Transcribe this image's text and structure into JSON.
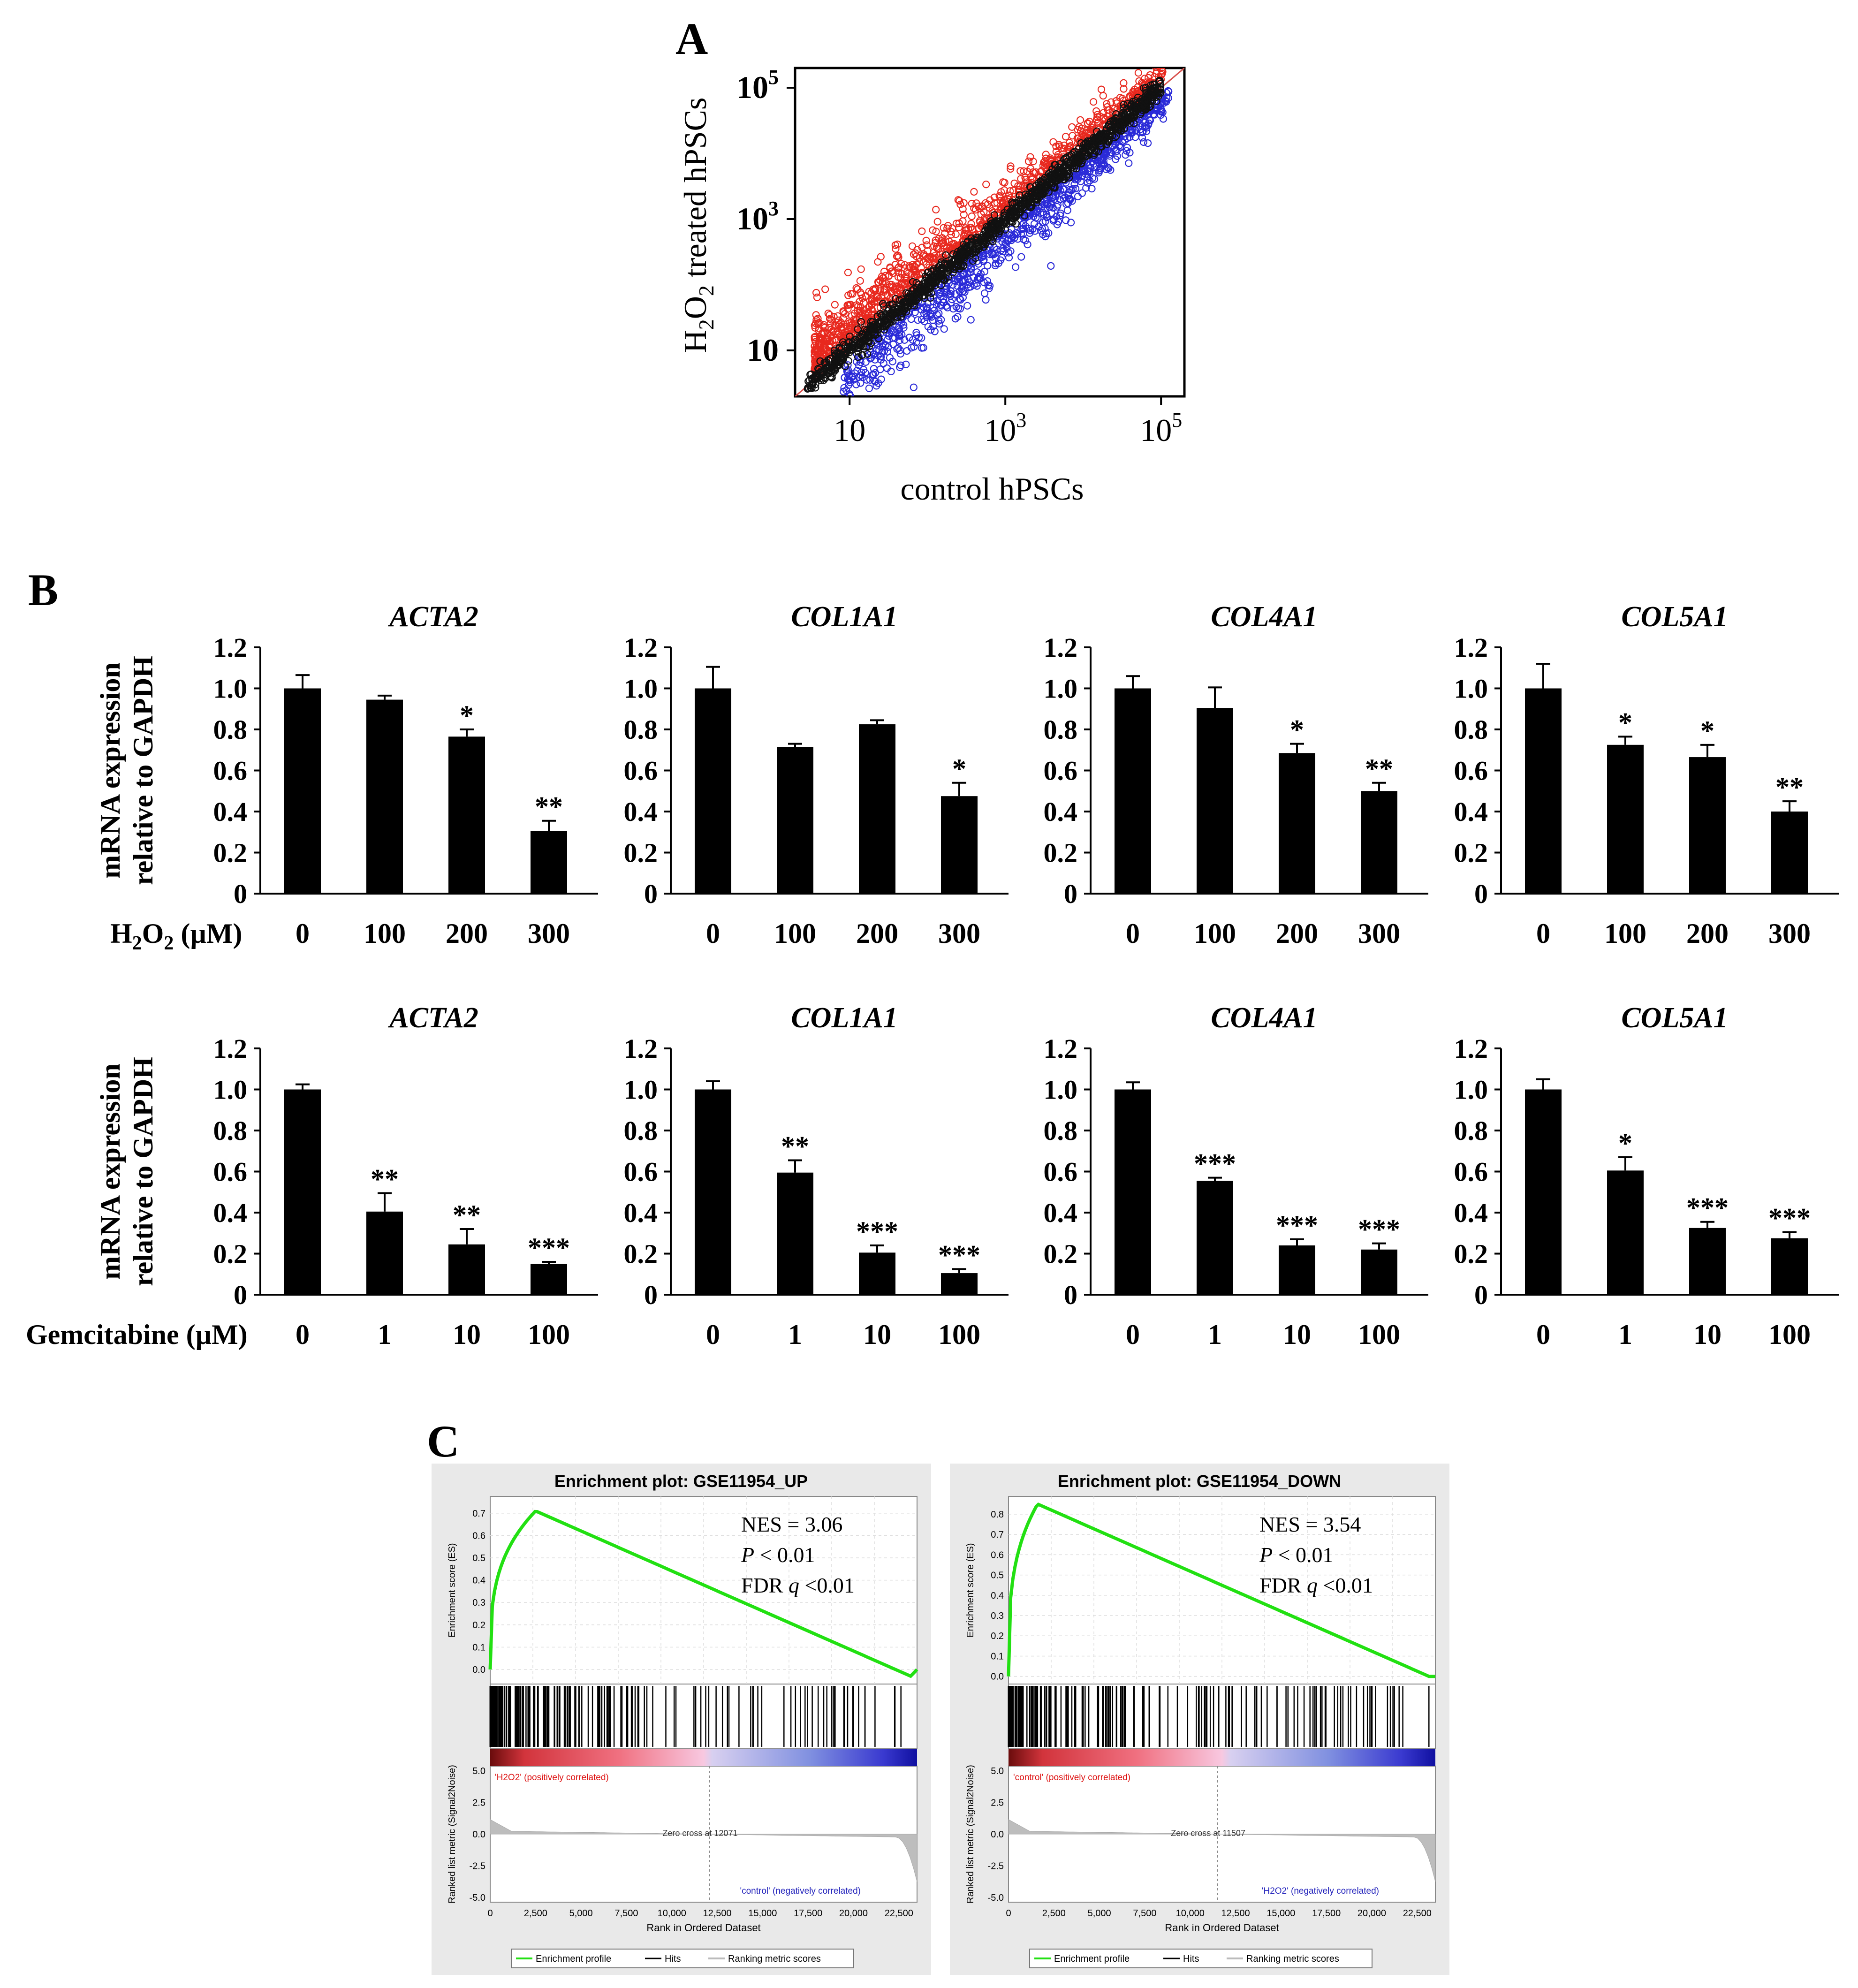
{
  "panels": {
    "A": "A",
    "B": "B",
    "C": "C"
  },
  "panelA": {
    "ylabel_prefix": "H",
    "ylabel_sub1": "2",
    "ylabel_mid": "O",
    "ylabel_sub2": "2",
    "ylabel_suffix": " treated hPSCs",
    "xlabel": "control hPSCs",
    "ticks": [
      {
        "base": "10",
        "exp": "",
        "log": 1
      },
      {
        "base": "10",
        "exp": "3",
        "log": 3
      },
      {
        "base": "10",
        "exp": "5",
        "log": 5
      }
    ],
    "colors": {
      "up": "#e8281e",
      "down": "#2a2ad8",
      "neutral": "#111111",
      "diag": "#d9534f"
    }
  },
  "panelB": {
    "ylabel_line1": "mRNA expression",
    "ylabel_line2": "relative to GAPDH",
    "yticks": [
      "0",
      "0.2",
      "0.4",
      "0.6",
      "0.8",
      "1.0",
      "1.2"
    ],
    "rows": [
      {
        "treatment_prefix": "H",
        "treatment_sub": "2",
        "treatment_mid": "O",
        "treatment_sub2": "2",
        "treatment_suffix": " (µM)",
        "treatment_label": "H2O2 (µM)",
        "doses": [
          "0",
          "100",
          "200",
          "300"
        ],
        "charts": [
          {
            "gene": "ACTA2",
            "values": [
              1.0,
              0.945,
              0.765,
              0.305
            ],
            "errors": [
              0.065,
              0.02,
              0.035,
              0.05
            ],
            "stars": [
              "",
              "",
              "*",
              "**"
            ]
          },
          {
            "gene": "COL1A1",
            "values": [
              1.0,
              0.715,
              0.825,
              0.475
            ],
            "errors": [
              0.105,
              0.015,
              0.02,
              0.065
            ],
            "stars": [
              "",
              "",
              "",
              "*"
            ]
          },
          {
            "gene": "COL4A1",
            "values": [
              1.0,
              0.905,
              0.685,
              0.5
            ],
            "errors": [
              0.06,
              0.1,
              0.045,
              0.04
            ],
            "stars": [
              "",
              "",
              "*",
              "**"
            ]
          },
          {
            "gene": "COL5A1",
            "values": [
              1.0,
              0.725,
              0.665,
              0.4
            ],
            "errors": [
              0.12,
              0.04,
              0.06,
              0.05
            ],
            "stars": [
              "",
              "*",
              "*",
              "**"
            ]
          }
        ]
      },
      {
        "treatment_label": "Gemcitabine (µM)",
        "doses": [
          "0",
          "1",
          "10",
          "100"
        ],
        "charts": [
          {
            "gene": "ACTA2",
            "values": [
              1.0,
              0.405,
              0.245,
              0.15
            ],
            "errors": [
              0.025,
              0.09,
              0.075,
              0.01
            ],
            "stars": [
              "",
              "**",
              "**",
              "***"
            ]
          },
          {
            "gene": "COL1A1",
            "values": [
              1.0,
              0.595,
              0.205,
              0.105
            ],
            "errors": [
              0.04,
              0.06,
              0.035,
              0.02
            ],
            "stars": [
              "",
              "**",
              "***",
              "***"
            ]
          },
          {
            "gene": "COL4A1",
            "values": [
              1.0,
              0.555,
              0.24,
              0.22
            ],
            "errors": [
              0.035,
              0.015,
              0.03,
              0.03
            ],
            "stars": [
              "",
              "***",
              "***",
              "***"
            ]
          },
          {
            "gene": "COL5A1",
            "values": [
              1.0,
              0.605,
              0.325,
              0.275
            ],
            "errors": [
              0.05,
              0.065,
              0.03,
              0.03
            ],
            "stars": [
              "",
              "*",
              "***",
              "***"
            ]
          }
        ]
      }
    ]
  },
  "panelC": [
    {
      "title": "Enrichment plot: GSE11954_UP",
      "es_ylabel": "Enrichment score (ES)",
      "es_ticks": [
        "0.0",
        "0.1",
        "0.2",
        "0.3",
        "0.4",
        "0.5",
        "0.6",
        "0.7"
      ],
      "es_max": 0.75,
      "es_min": -0.04,
      "es_peak": 0.71,
      "es_peak_rank": 2500,
      "es_end": -0.03,
      "stats": {
        "nes": "NES = 3.06",
        "p_letter": "P",
        "p_rest": " < 0.01",
        "fdr_pre": "FDR ",
        "fdr_q": "q",
        "fdr_post": " <0.01"
      },
      "pos_label": "'H2O2' (positively correlated)",
      "neg_label": "'control' (negatively correlated)",
      "zero_cross": "Zero cross at 12071",
      "zero_cross_rank": 12071,
      "metric_ylabel": "Ranked list metric (Signal2Noise)",
      "metric_ticks": [
        "5.0",
        "2.5",
        "0.0",
        "-2.5",
        "-5.0"
      ],
      "x_ticks": [
        "0",
        "2,500",
        "5,000",
        "7,500",
        "10,000",
        "12,500",
        "15,000",
        "17,500",
        "20,000",
        "22,500"
      ],
      "xlabel": "Rank in Ordered Dataset",
      "legend": [
        "Enrichment profile",
        "Hits",
        "Ranking metric scores"
      ],
      "n": 23500
    },
    {
      "title": "Enrichment plot: GSE11954_DOWN",
      "es_ylabel": "Enrichment score (ES)",
      "es_ticks": [
        "0.0",
        "0.1",
        "0.2",
        "0.3",
        "0.4",
        "0.5",
        "0.6",
        "0.7",
        "0.8"
      ],
      "es_max": 0.86,
      "es_min": -0.01,
      "es_peak": 0.85,
      "es_peak_rank": 1600,
      "es_end": 0.0,
      "stats": {
        "nes": "NES = 3.54",
        "p_letter": "P",
        "p_rest": " < 0.01",
        "fdr_pre": "FDR ",
        "fdr_q": "q",
        "fdr_post": " <0.01"
      },
      "pos_label": "'control' (positively correlated)",
      "neg_label": "'H2O2' (negatively correlated)",
      "zero_cross": "Zero cross at 11507",
      "zero_cross_rank": 11507,
      "metric_ylabel": "Ranked list metric (Signal2Noise)",
      "metric_ticks": [
        "5.0",
        "2.5",
        "0.0",
        "-2.5",
        "-5.0"
      ],
      "x_ticks": [
        "0",
        "2,500",
        "5,000",
        "7,500",
        "10,000",
        "12,500",
        "15,000",
        "17,500",
        "20,000",
        "22,500"
      ],
      "xlabel": "Rank in Ordered Dataset",
      "legend": [
        "Enrichment profile",
        "Hits",
        "Ranking metric scores"
      ],
      "n": 23500
    }
  ],
  "chart_data": [
    {
      "type": "scatter",
      "title": "A",
      "xlabel": "control hPSCs",
      "ylabel": "H2O2 treated hPSCs",
      "xscale": "log",
      "yscale": "log",
      "xlim": [
        2,
        200000
      ],
      "ylim": [
        2,
        200000
      ],
      "series": [
        {
          "name": "upregulated",
          "color": "#e8281e"
        },
        {
          "name": "downregulated",
          "color": "#2a2ad8"
        },
        {
          "name": "unchanged",
          "color": "#111111"
        }
      ]
    },
    {
      "type": "bar",
      "title": "ACTA2",
      "xlabel": "H2O2 (µM)",
      "ylabel": "mRNA expression relative to GAPDH",
      "categories": [
        "0",
        "100",
        "200",
        "300"
      ],
      "values": [
        1.0,
        0.945,
        0.765,
        0.305
      ],
      "ylim": [
        0,
        1.2
      ]
    },
    {
      "type": "bar",
      "title": "COL1A1",
      "xlabel": "H2O2 (µM)",
      "ylabel": "mRNA expression relative to GAPDH",
      "categories": [
        "0",
        "100",
        "200",
        "300"
      ],
      "values": [
        1.0,
        0.715,
        0.825,
        0.475
      ],
      "ylim": [
        0,
        1.2
      ]
    },
    {
      "type": "bar",
      "title": "COL4A1",
      "xlabel": "H2O2 (µM)",
      "ylabel": "mRNA expression relative to GAPDH",
      "categories": [
        "0",
        "100",
        "200",
        "300"
      ],
      "values": [
        1.0,
        0.905,
        0.685,
        0.5
      ],
      "ylim": [
        0,
        1.2
      ]
    },
    {
      "type": "bar",
      "title": "COL5A1",
      "xlabel": "H2O2 (µM)",
      "ylabel": "mRNA expression relative to GAPDH",
      "categories": [
        "0",
        "100",
        "200",
        "300"
      ],
      "values": [
        1.0,
        0.725,
        0.665,
        0.4
      ],
      "ylim": [
        0,
        1.2
      ]
    },
    {
      "type": "bar",
      "title": "ACTA2",
      "xlabel": "Gemcitabine (µM)",
      "ylabel": "mRNA expression relative to GAPDH",
      "categories": [
        "0",
        "1",
        "10",
        "100"
      ],
      "values": [
        1.0,
        0.405,
        0.245,
        0.15
      ],
      "ylim": [
        0,
        1.2
      ]
    },
    {
      "type": "bar",
      "title": "COL1A1",
      "xlabel": "Gemcitabine (µM)",
      "ylabel": "mRNA expression relative to GAPDH",
      "categories": [
        "0",
        "1",
        "10",
        "100"
      ],
      "values": [
        1.0,
        0.595,
        0.205,
        0.105
      ],
      "ylim": [
        0,
        1.2
      ]
    },
    {
      "type": "bar",
      "title": "COL4A1",
      "xlabel": "Gemcitabine (µM)",
      "ylabel": "mRNA expression relative to GAPDH",
      "categories": [
        "0",
        "1",
        "10",
        "100"
      ],
      "values": [
        1.0,
        0.555,
        0.24,
        0.22
      ],
      "ylim": [
        0,
        1.2
      ]
    },
    {
      "type": "bar",
      "title": "COL5A1",
      "xlabel": "Gemcitabine (µM)",
      "ylabel": "mRNA expression relative to GAPDH",
      "categories": [
        "0",
        "1",
        "10",
        "100"
      ],
      "values": [
        1.0,
        0.605,
        0.325,
        0.275
      ],
      "ylim": [
        0,
        1.2
      ]
    },
    {
      "type": "line",
      "title": "Enrichment plot: GSE11954_UP",
      "xlabel": "Rank in Ordered Dataset",
      "ylabel": "Enrichment score (ES)",
      "x": [
        0,
        300,
        1000,
        2500,
        5000,
        10000,
        15000,
        20000,
        23000,
        23500
      ],
      "y": [
        0,
        0.45,
        0.66,
        0.71,
        0.63,
        0.46,
        0.29,
        0.1,
        -0.03,
        0.0
      ],
      "ylim": [
        -0.04,
        0.75
      ]
    },
    {
      "type": "line",
      "title": "Enrichment plot: GSE11954_DOWN",
      "xlabel": "Rank in Ordered Dataset",
      "ylabel": "Enrichment score (ES)",
      "x": [
        0,
        300,
        800,
        1600,
        5000,
        10000,
        15000,
        20000,
        23500
      ],
      "y": [
        0,
        0.55,
        0.8,
        0.85,
        0.74,
        0.55,
        0.37,
        0.16,
        0.0
      ],
      "ylim": [
        -0.01,
        0.86
      ]
    }
  ]
}
